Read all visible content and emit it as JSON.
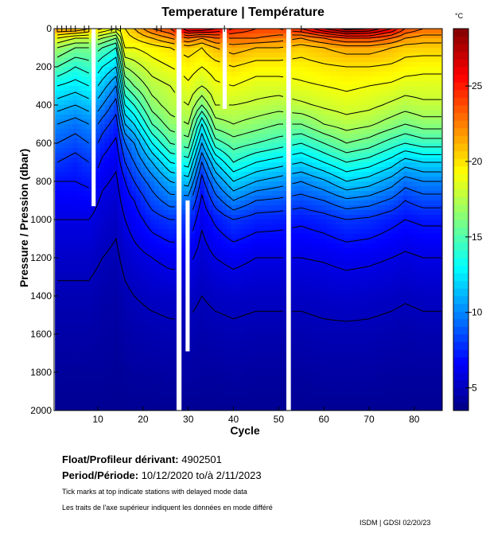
{
  "chart_data": {
    "type": "heatmap",
    "title": "Temperature | Température",
    "xlabel": "Cycle",
    "ylabel": "Pressure / Pression (dbar)",
    "colorbar_label": "°C",
    "colormap": "jet",
    "xlim": [
      0.3,
      86.2
    ],
    "ylim": [
      2000,
      0
    ],
    "y_inverted": true,
    "x_ticks": [
      10,
      20,
      30,
      40,
      50,
      60,
      70,
      80
    ],
    "y_ticks": [
      0,
      200,
      400,
      600,
      800,
      1000,
      1200,
      1400,
      1600,
      1800,
      2000
    ],
    "colorbar_range": [
      3.5,
      28.8
    ],
    "colorbar_ticks": [
      5,
      10,
      15,
      20,
      25
    ],
    "contour_interval": 1,
    "delayed_mode_ticks": [
      1,
      2,
      3,
      4,
      5,
      7,
      8,
      13,
      14,
      15,
      23,
      24,
      38,
      55
    ],
    "pressure_levels": [
      0,
      50,
      100,
      200,
      300,
      400,
      500,
      600,
      700,
      800,
      900,
      1000,
      1200,
      1400,
      1600,
      1800,
      2000
    ],
    "profiles": [
      {
        "cycle": 1,
        "temperature": [
          22,
          19,
          17,
          15,
          13,
          11.5,
          10,
          9,
          8,
          7,
          6.5,
          6,
          5.3,
          4.8,
          4.5,
          4.2,
          4.0
        ]
      },
      {
        "cycle": 5,
        "temperature": [
          22,
          18,
          16,
          14,
          12.5,
          11,
          9.5,
          8.5,
          7.5,
          7,
          6.5,
          6,
          5.3,
          4.8,
          4.5,
          4.2,
          4.0
        ]
      },
      {
        "cycle": 8,
        "temperature": [
          21,
          18,
          16,
          14.5,
          13,
          11.5,
          10,
          9,
          8,
          7.2,
          6.6,
          6,
          5.3,
          4.8,
          4.5,
          4.2,
          4.0
        ]
      },
      {
        "cycle": 11,
        "temperature": [
          20,
          17,
          15,
          13,
          11.5,
          10,
          8.5,
          7.5,
          6.8,
          6.2,
          5.8,
          5.5,
          5,
          4.6,
          4.4,
          4.2,
          4.0
        ]
      },
      {
        "cycle": 14,
        "temperature": [
          19,
          16,
          14,
          12,
          10,
          8.5,
          7.5,
          6.8,
          6.2,
          5.8,
          5.5,
          5.2,
          4.8,
          4.5,
          4.3,
          4.1,
          4.0
        ]
      },
      {
        "cycle": 16,
        "temperature": [
          20,
          19.5,
          19,
          17,
          15,
          13,
          11,
          9,
          8,
          7,
          6.5,
          6,
          5.3,
          4.8,
          4.5,
          4.2,
          4.0
        ]
      },
      {
        "cycle": 18,
        "temperature": [
          21,
          20,
          19,
          17.5,
          16,
          14,
          12,
          10,
          9,
          8,
          7,
          6.5,
          5.6,
          5,
          4.6,
          4.3,
          4.0
        ]
      },
      {
        "cycle": 22,
        "temperature": [
          23,
          21,
          19.5,
          18.5,
          17.5,
          16.5,
          15,
          13,
          11,
          9.5,
          8.5,
          7.5,
          6,
          5.2,
          4.7,
          4.3,
          4.0
        ]
      },
      {
        "cycle": 26,
        "temperature": [
          24,
          22,
          20,
          19,
          18,
          17.5,
          16.5,
          15,
          13,
          11,
          9.5,
          8,
          6.3,
          5.3,
          4.8,
          4.4,
          4.0
        ]
      },
      {
        "cycle": 30,
        "temperature": [
          27,
          23,
          20.5,
          19.5,
          18.8,
          18,
          17,
          15.5,
          13.5,
          11.5,
          9.5,
          8,
          6.3,
          5.3,
          4.8,
          4.4,
          4.0
        ]
      },
      {
        "cycle": 33,
        "temperature": [
          27,
          22,
          20,
          19,
          18,
          16,
          13,
          11,
          9,
          7.5,
          6.8,
          6.2,
          5.5,
          5,
          4.6,
          4.3,
          4.0
        ]
      },
      {
        "cycle": 36,
        "temperature": [
          26,
          23,
          21,
          19.5,
          18.8,
          18,
          16.5,
          14.5,
          12,
          10,
          8.5,
          7.2,
          6,
          5.2,
          4.7,
          4.3,
          4.0
        ]
      },
      {
        "cycle": 40,
        "temperature": [
          25,
          23,
          21.5,
          20,
          19,
          18,
          17,
          15.5,
          14,
          12,
          10,
          8,
          6.3,
          5.3,
          4.8,
          4.4,
          4.0
        ]
      },
      {
        "cycle": 45,
        "temperature": [
          24,
          23,
          21,
          19.5,
          18.5,
          17.8,
          16.5,
          15,
          13,
          11,
          9,
          7.5,
          6,
          5.2,
          4.7,
          4.3,
          4.0
        ]
      },
      {
        "cycle": 50,
        "temperature": [
          24,
          22.5,
          21,
          19.5,
          18.5,
          17.5,
          16,
          14.5,
          12.5,
          10.5,
          8.8,
          7.4,
          6,
          5.2,
          4.7,
          4.3,
          4.0
        ]
      },
      {
        "cycle": 55,
        "temperature": [
          25,
          22,
          20.5,
          19.5,
          18.8,
          17.8,
          16,
          14,
          12,
          10,
          8.5,
          7.2,
          6,
          5.2,
          4.7,
          4.3,
          4.0
        ]
      },
      {
        "cycle": 60,
        "temperature": [
          27,
          23,
          21,
          19.8,
          19,
          18.2,
          17,
          15,
          13,
          10.8,
          9,
          7.5,
          6.1,
          5.3,
          4.8,
          4.4,
          4.0
        ]
      },
      {
        "cycle": 65,
        "temperature": [
          28.5,
          24,
          21.5,
          20,
          19.2,
          18.5,
          17.5,
          16,
          14,
          12,
          9.8,
          8,
          6.3,
          5.4,
          4.8,
          4.4,
          4.0
        ]
      },
      {
        "cycle": 70,
        "temperature": [
          28,
          24,
          21.5,
          20,
          19,
          18.3,
          17.2,
          15.5,
          13.5,
          11.5,
          9.5,
          7.8,
          6.2,
          5.3,
          4.8,
          4.4,
          4.0
        ]
      },
      {
        "cycle": 75,
        "temperature": [
          26,
          23,
          21,
          19.8,
          18.8,
          17.8,
          16.5,
          14.5,
          12.5,
          10.5,
          8.8,
          7.3,
          6,
          5.2,
          4.7,
          4.3,
          4.0
        ]
      },
      {
        "cycle": 78,
        "temperature": [
          24,
          22,
          20.5,
          19.5,
          18.5,
          17.5,
          16,
          14,
          11.5,
          9.5,
          8,
          7,
          5.8,
          5.1,
          4.6,
          4.3,
          4.0
        ]
      },
      {
        "cycle": 82,
        "temperature": [
          23,
          21.5,
          20.5,
          19.3,
          18.5,
          17.8,
          16.5,
          14.5,
          12,
          10,
          8.5,
          7.2,
          6,
          5.2,
          4.7,
          4.3,
          4.0
        ]
      },
      {
        "cycle": 86,
        "temperature": [
          23,
          21.5,
          20.5,
          19.3,
          18.5,
          17.8,
          16.5,
          14.5,
          12,
          10,
          8.5,
          7.2,
          6,
          5.2,
          4.7,
          4.3,
          4.0
        ]
      }
    ],
    "missing_data": [
      {
        "cycles": [
          8.6,
          9.5
        ],
        "pressure": [
          0,
          930
        ]
      },
      {
        "cycles": [
          27.4,
          28.5
        ],
        "pressure": [
          0,
          2000
        ]
      },
      {
        "cycles": [
          29.4,
          30.3
        ],
        "pressure": [
          900,
          1690
        ]
      },
      {
        "cycles": [
          37.6,
          38.5
        ],
        "pressure": [
          0,
          420
        ]
      },
      {
        "cycles": [
          51.7,
          52.7
        ],
        "pressure": [
          0,
          2000
        ]
      }
    ]
  },
  "info": {
    "float_label": "Float/Profileur dérivant:",
    "float_id": "4902501",
    "period_label": "Period/Période:",
    "period_value": "10/12/2020  to/à  2/11/2023",
    "note_en": "Tick marks at top indicate stations with delayed mode data",
    "note_fr": "Les traits de l'axe supérieur indiquent les données en mode différé",
    "credit": "ISDM | GDSI  02/20/23"
  }
}
